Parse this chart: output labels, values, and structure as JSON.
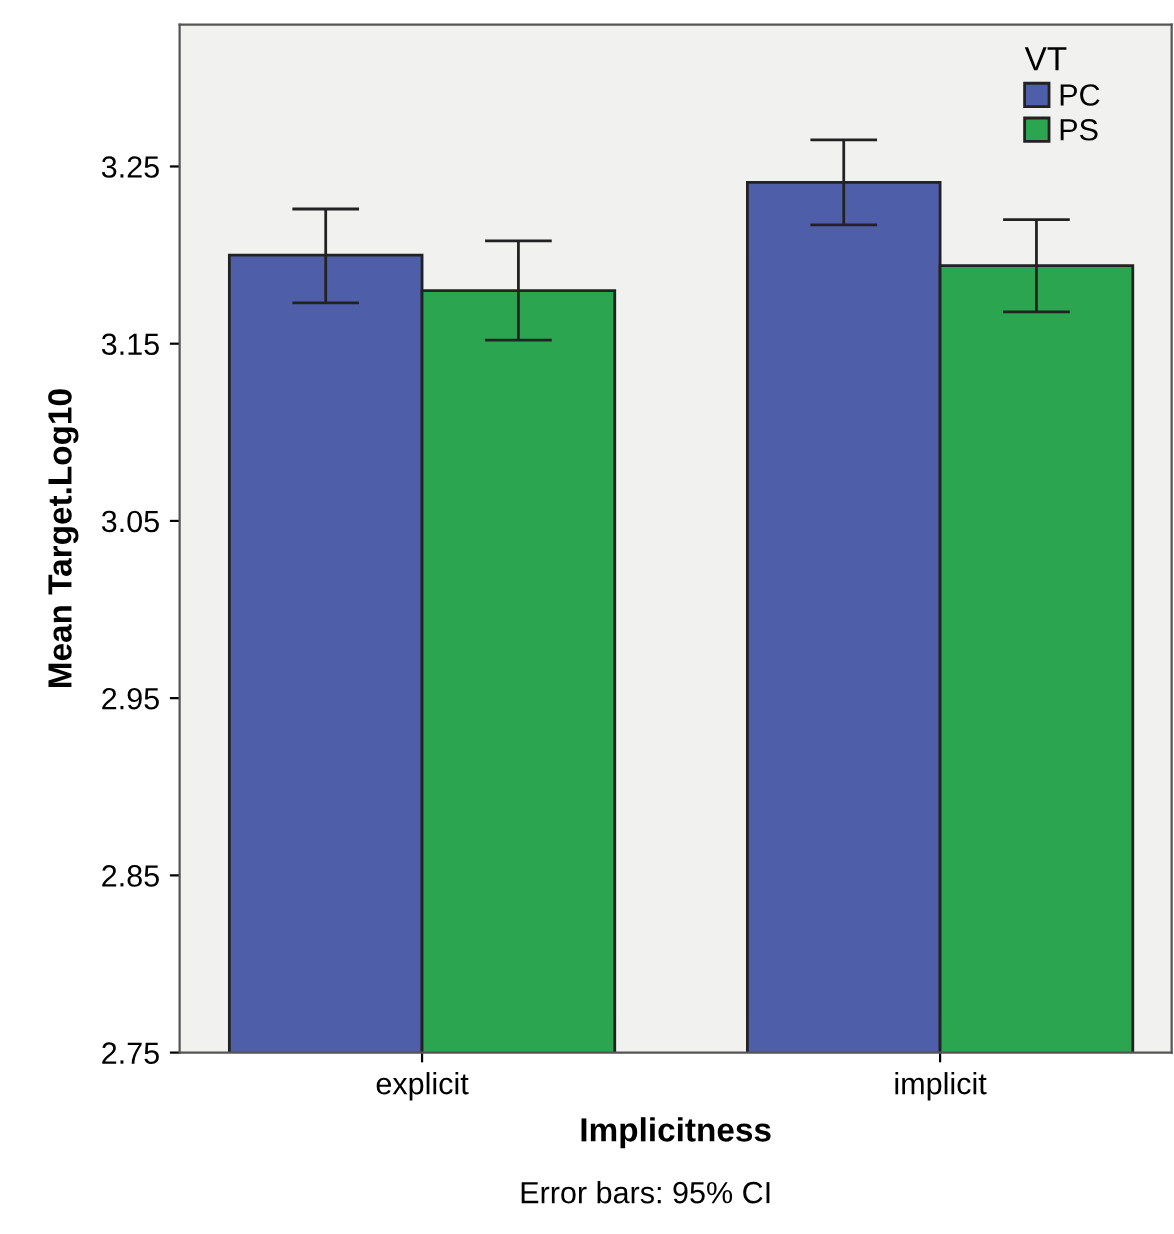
{
  "chart_data": {
    "type": "bar",
    "xlabel": "Implicitness",
    "ylabel": "Mean Target.Log10",
    "legend_title": "VT",
    "categories": [
      "explicit",
      "implicit"
    ],
    "series": [
      {
        "name": "PC",
        "color": "#4f5ea8",
        "values": [
          3.2,
          3.241
        ],
        "errors": [
          [
            3.173,
            3.226
          ],
          [
            3.217,
            3.265
          ]
        ]
      },
      {
        "name": "PS",
        "color": "#2ba54f",
        "values": [
          3.18,
          3.194
        ],
        "errors": [
          [
            3.152,
            3.208
          ],
          [
            3.168,
            3.22
          ]
        ]
      }
    ],
    "ylim": [
      2.75,
      3.33
    ],
    "yticks": [
      2.75,
      2.85,
      2.95,
      3.05,
      3.15,
      3.25
    ],
    "grid": false,
    "legend": "top right",
    "annotations": [
      "Error bars: 95% CI"
    ]
  }
}
